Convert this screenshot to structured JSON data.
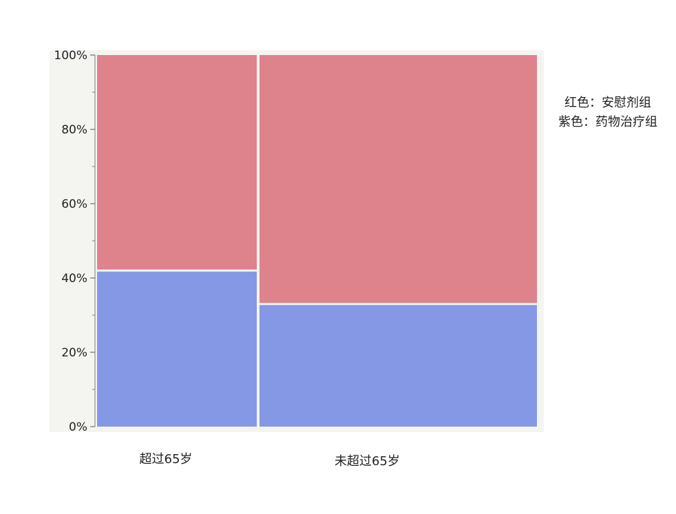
{
  "chart_data": {
    "type": "bar",
    "title": "",
    "xlabel": "",
    "ylabel": "",
    "stacked": true,
    "percent_scale": true,
    "variable_width": true,
    "categories": [
      "超过65岁",
      "未超过65岁"
    ],
    "category_widths": [
      0.367,
      0.633
    ],
    "series": [
      {
        "color": "#8598E6",
        "values": [
          42,
          33
        ]
      },
      {
        "color": "#DE828B",
        "values": [
          58,
          67
        ]
      }
    ],
    "y_ticks": [
      "0%",
      "20%",
      "40%",
      "60%",
      "80%",
      "100%"
    ],
    "ylim": [
      0,
      100
    ],
    "grid": false,
    "legend_position": "right",
    "legend_lines": [
      "红色：安慰剂组",
      "紫色：药物治疗组"
    ],
    "plot_background": "#F4F5F1"
  }
}
